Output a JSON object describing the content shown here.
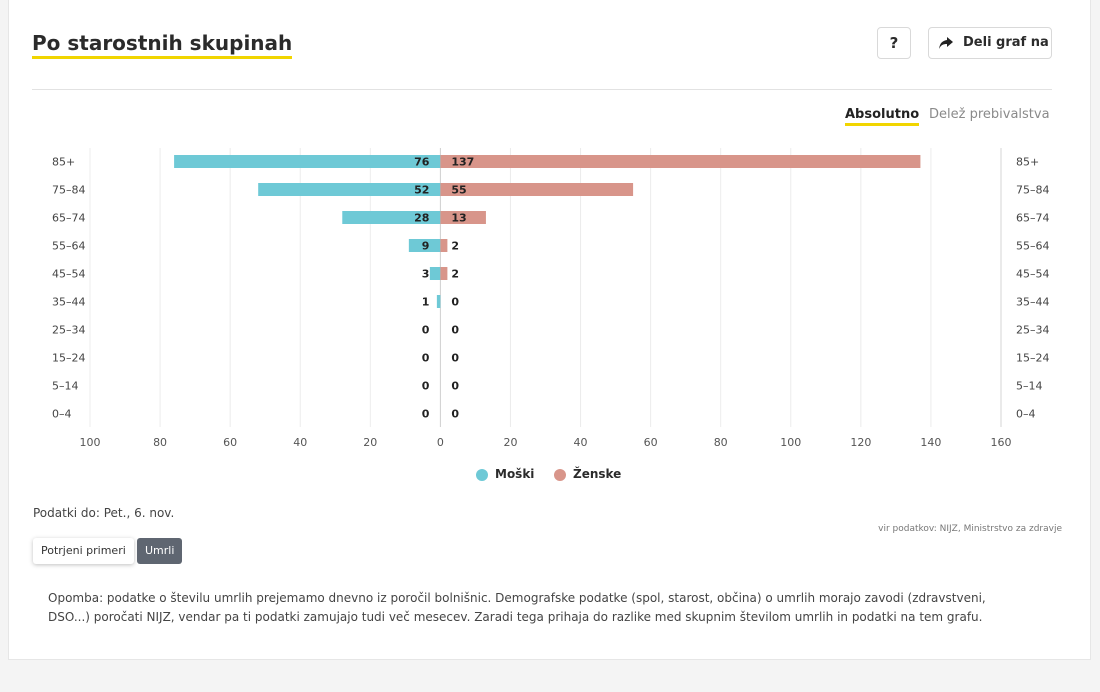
{
  "header": {
    "title": "Po starostnih skupinah",
    "help_label": "?",
    "share_label": "Deli graf na"
  },
  "toggle": {
    "absolute_label": "Absolutno",
    "share_label": "Delež prebivalstva",
    "active": "Absolutno"
  },
  "chart_data": {
    "type": "bar",
    "orientation": "horizontal-pyramid",
    "categories": [
      "85+",
      "75–84",
      "65–74",
      "55–64",
      "45–54",
      "35–44",
      "25–34",
      "15–24",
      "5–14",
      "0–4"
    ],
    "series": [
      {
        "name": "Moški",
        "values": [
          76,
          52,
          28,
          9,
          3,
          1,
          0,
          0,
          0,
          0
        ],
        "color": "#6ec9d6",
        "direction": "left"
      },
      {
        "name": "Ženske",
        "values": [
          137,
          55,
          13,
          2,
          2,
          0,
          0,
          0,
          0,
          0
        ],
        "color": "#d8958a",
        "direction": "right"
      }
    ],
    "xlim": [
      -100,
      160
    ],
    "x_ticks": [
      -100,
      -80,
      -60,
      -40,
      -20,
      0,
      20,
      40,
      60,
      80,
      100,
      120,
      140,
      160
    ],
    "x_tick_labels": [
      "100",
      "80",
      "60",
      "40",
      "20",
      "0",
      "20",
      "40",
      "60",
      "80",
      "100",
      "120",
      "140",
      "160"
    ],
    "grid": true,
    "legend": "bottom"
  },
  "footer": {
    "data_until": "Podatki do: Pet., 6. nov.",
    "source": "vir podatkov: NIJZ, Ministrstvo za zdravje",
    "buttons": {
      "confirmed": "Potrjeni primeri",
      "deaths": "Umrli"
    },
    "note": "Opomba: podatke o številu umrlih prejemamo dnevno iz poročil bolnišnic. Demografske podatke (spol, starost, občina) o umrlih morajo zavodi (zdravstveni, DSO...) poročati NIJZ, vendar pa ti podatki zamujajo tudi več mesecev. Zaradi tega prihaja do razlike med skupnim številom umrlih in podatki na tem grafu."
  },
  "colors": {
    "accent": "#f1d500",
    "male": "#6ec9d6",
    "female": "#d8958a"
  }
}
